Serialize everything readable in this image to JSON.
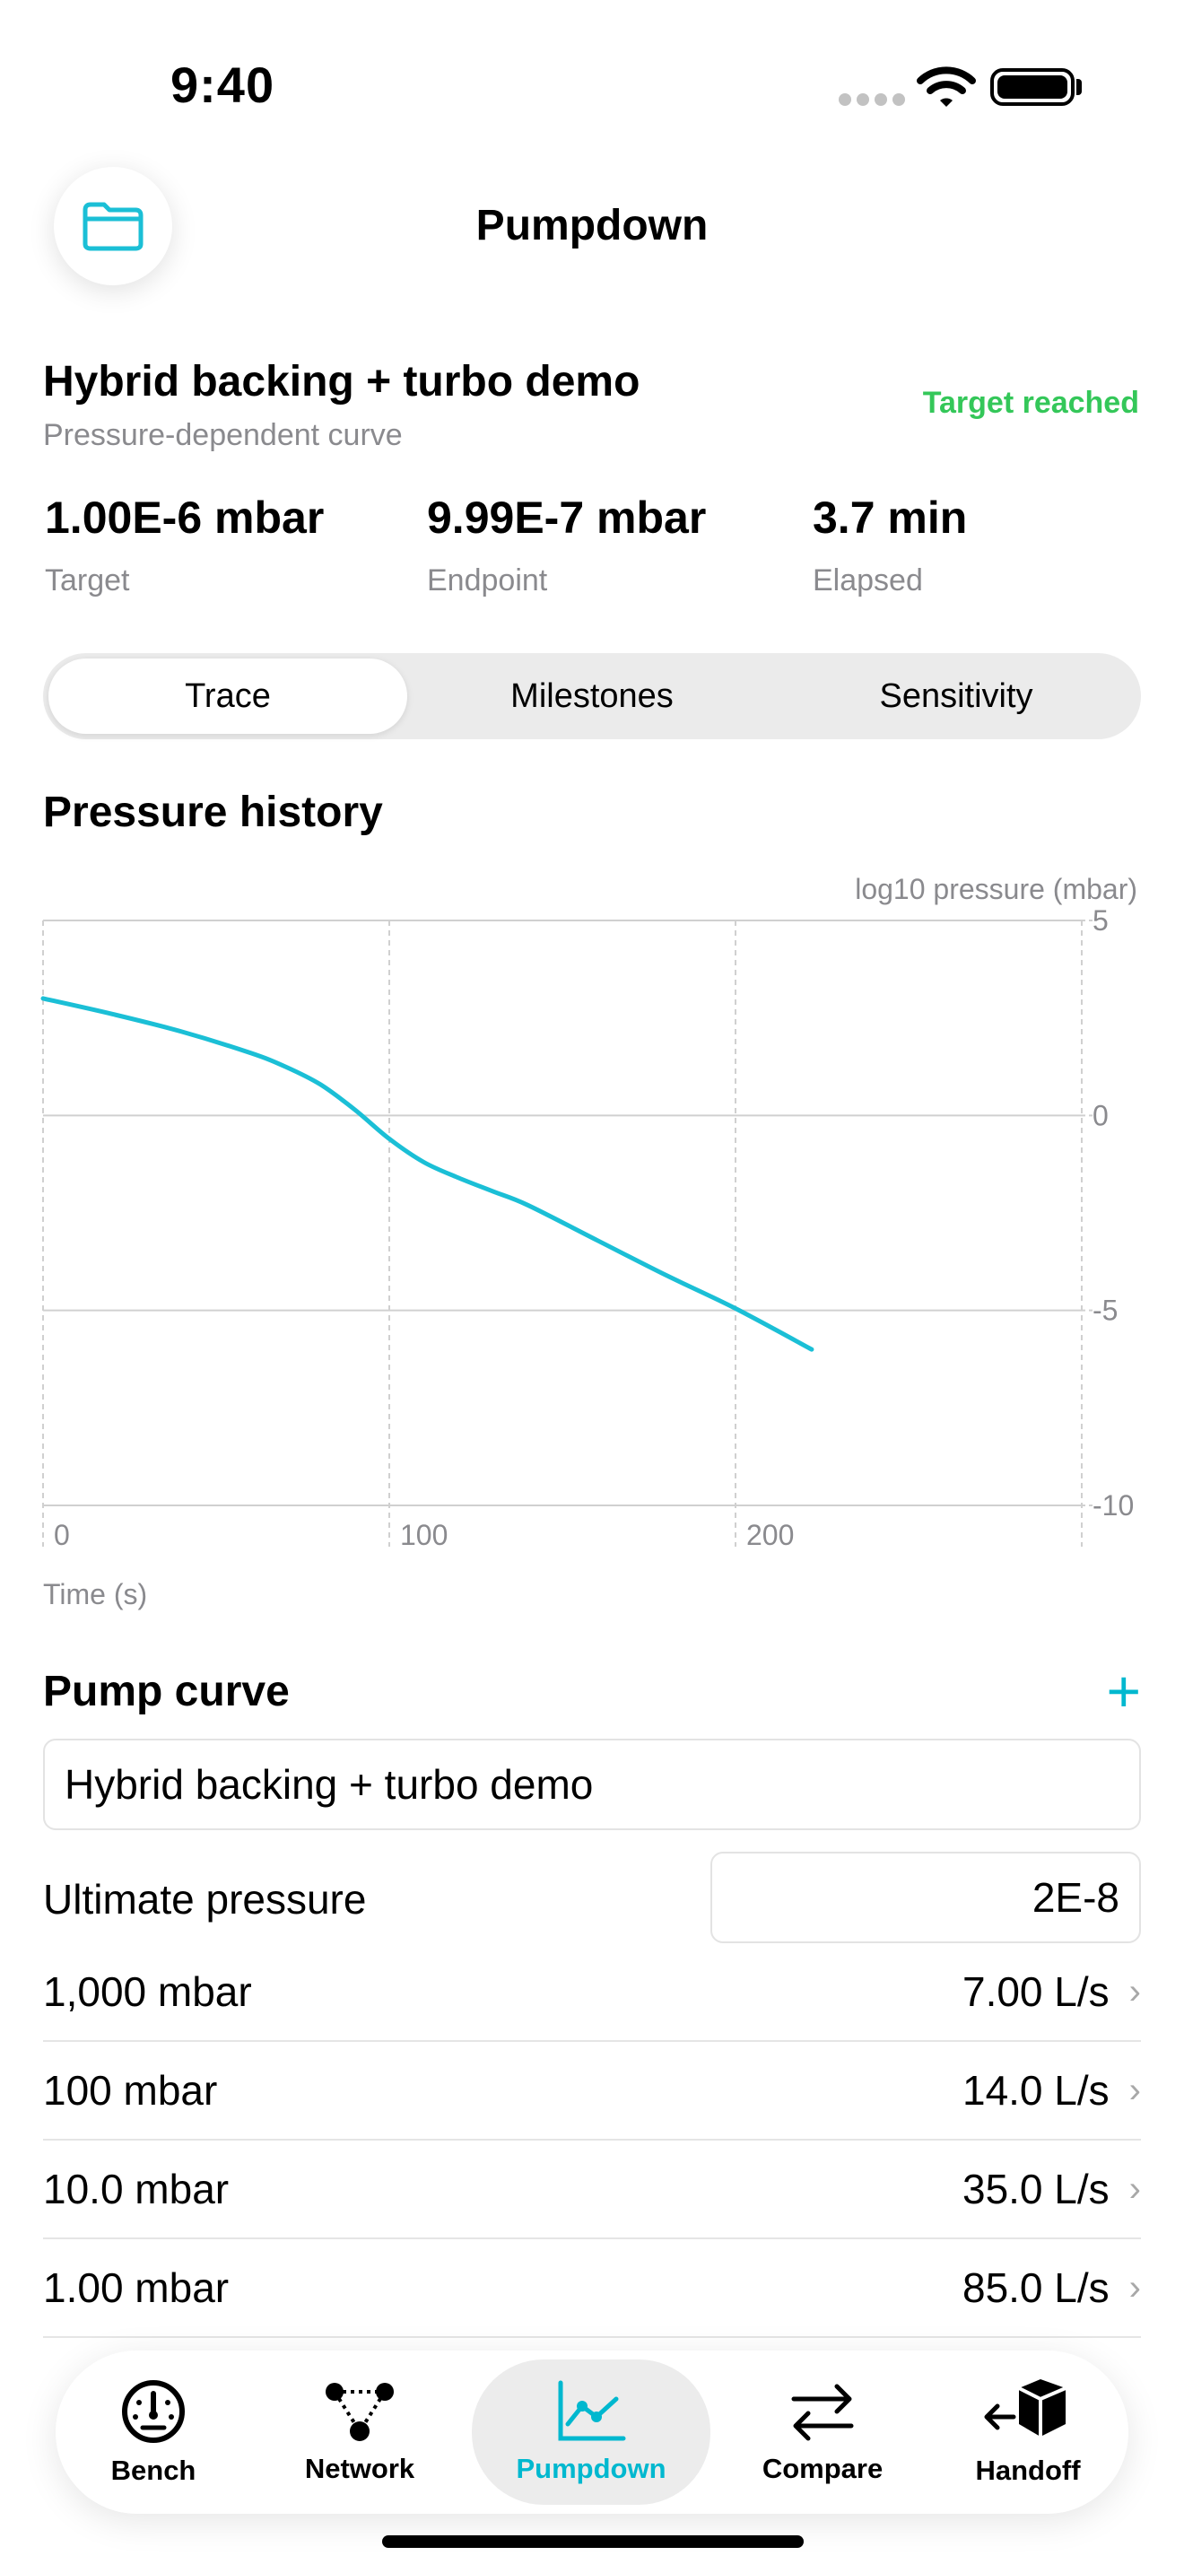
{
  "status_bar": {
    "time": "9:40"
  },
  "nav": {
    "title": "Pumpdown",
    "folder_icon": "folder-icon"
  },
  "summary": {
    "profile_name": "Hybrid backing + turbo demo",
    "profile_subtitle": "Pressure-dependent curve",
    "status": "Target reached",
    "status_color": "#34c759",
    "metrics": [
      {
        "value": "1.00E-6 mbar",
        "label": "Target"
      },
      {
        "value": "9.99E-7 mbar",
        "label": "Endpoint"
      },
      {
        "value": "3.7 min",
        "label": "Elapsed"
      }
    ]
  },
  "segments": {
    "items": [
      "Trace",
      "Milestones",
      "Sensitivity"
    ],
    "selected": "Trace"
  },
  "pressure_history": {
    "title": "Pressure history"
  },
  "chart_data": {
    "type": "line",
    "xlabel": "Time (s)",
    "ylabel": "log10 pressure (mbar)",
    "xlim": [
      0,
      300
    ],
    "ylim": [
      -10,
      5
    ],
    "x_ticks": [
      0,
      100,
      200
    ],
    "y_ticks": [
      5,
      0,
      -5,
      -10
    ],
    "grid": true,
    "y_axis_side": "right",
    "line_color": "#1bbfd6",
    "series": [
      {
        "x": [
          0,
          20,
          40,
          60,
          70,
          80,
          90,
          100,
          110,
          120,
          130,
          140,
          160,
          180,
          200,
          222
        ],
        "values": [
          3.0,
          2.6,
          2.15,
          1.6,
          1.25,
          0.8,
          0.15,
          -0.6,
          -1.2,
          -1.6,
          -1.95,
          -2.3,
          -3.2,
          -4.1,
          -4.95,
          -6.0
        ]
      }
    ]
  },
  "pump_curve": {
    "title": "Pump curve",
    "add_label": "+",
    "curve_name": "Hybrid backing + turbo demo",
    "ultimate_label": "Ultimate pressure",
    "ultimate_value": "2E-8",
    "rows": [
      {
        "pressure": "1,000 mbar",
        "speed": "7.00 L/s"
      },
      {
        "pressure": "100 mbar",
        "speed": "14.0 L/s"
      },
      {
        "pressure": "10.0 mbar",
        "speed": "35.0 L/s"
      },
      {
        "pressure": "1.00 mbar",
        "speed": "85.0 L/s"
      }
    ]
  },
  "tabs": {
    "items": [
      {
        "label": "Bench",
        "icon": "gauge-icon"
      },
      {
        "label": "Network",
        "icon": "network-icon"
      },
      {
        "label": "Pumpdown",
        "icon": "chart-line-icon"
      },
      {
        "label": "Compare",
        "icon": "arrows-swap-icon"
      },
      {
        "label": "Handoff",
        "icon": "box-arrow-icon"
      }
    ],
    "selected": "Pumpdown",
    "accent": "#00b8cf"
  }
}
